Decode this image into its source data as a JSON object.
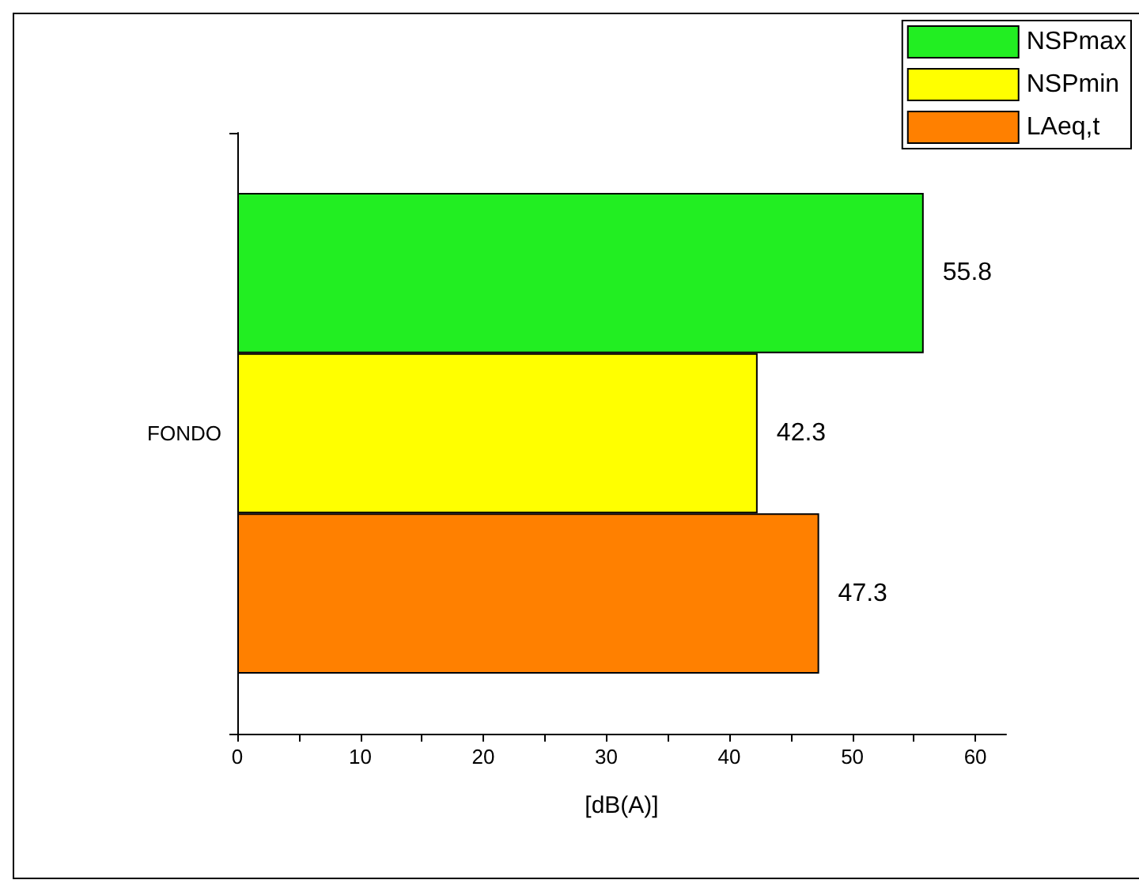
{
  "chart_data": {
    "type": "bar",
    "orientation": "horizontal",
    "xlabel": "[dB(A)]",
    "categories": [
      "FONDO"
    ],
    "series": [
      {
        "name": "NSPmax",
        "color": "#22ee22",
        "values": [
          55.8
        ]
      },
      {
        "name": "NSPmin",
        "color": "#ffff00",
        "values": [
          42.3
        ]
      },
      {
        "name": "LAeq,t",
        "color": "#ff8000",
        "values": [
          47.3
        ]
      }
    ],
    "xlim": [
      0,
      62.5
    ],
    "xticks": [
      0,
      {
        "value": 5,
        "label": null
      },
      10,
      {
        "value": 15,
        "label": null
      },
      20,
      {
        "value": 25,
        "label": null
      },
      30,
      {
        "value": 35,
        "label": null
      },
      40,
      {
        "value": 45,
        "label": null
      },
      50,
      {
        "value": 55,
        "label": null
      },
      60
    ],
    "data_labels": true,
    "legend": "top right",
    "grid": false
  }
}
